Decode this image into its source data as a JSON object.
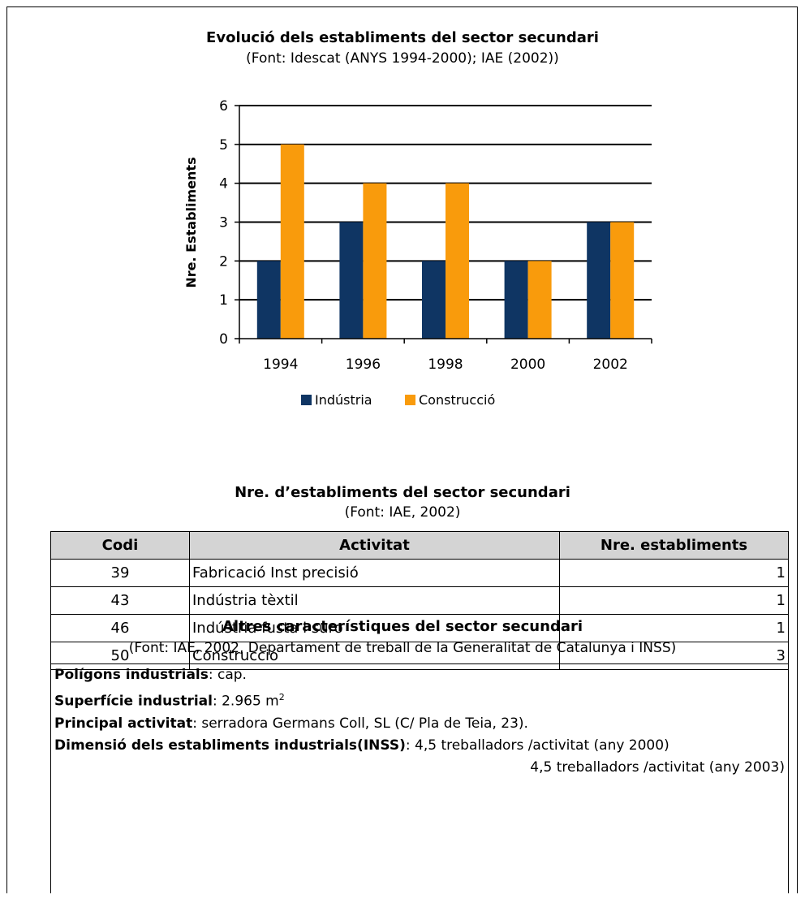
{
  "chart_title": "Evolució dels establiments del sector secundari",
  "chart_source": "(Font: Idescat (ANYS 1994-2000); IAE (2002))",
  "chart_data": {
    "type": "bar",
    "title": "Evolució dels establiments del sector secundari",
    "subtitle": "(Font: Idescat (ANYS 1994-2000); IAE (2002))",
    "categories": [
      "1994",
      "1996",
      "1998",
      "2000",
      "2002"
    ],
    "series": [
      {
        "name": "Indústria",
        "values": [
          2,
          3,
          2,
          2,
          3
        ],
        "color": "#0f3563"
      },
      {
        "name": "Construcció",
        "values": [
          5,
          4,
          4,
          2,
          3
        ],
        "color": "#f99b0c"
      }
    ],
    "xlabel": "",
    "ylabel": "Nre. Establiments",
    "ylim": [
      0,
      6
    ],
    "yticks": [
      "0",
      "1",
      "2",
      "3",
      "4",
      "5",
      "6"
    ],
    "grid": true,
    "legend": "bottom"
  },
  "table": {
    "title": "Nre. d’establiments del sector secundari",
    "source": "(Font: IAE, 2002)",
    "headers": [
      "Codi",
      "Activitat",
      "Nre. establiments"
    ],
    "rows": [
      [
        "39",
        "Fabricació Inst precisió",
        "1"
      ],
      [
        "43",
        "Indústria tèxtil",
        "1"
      ],
      [
        "46",
        "Indústria fusta i suro",
        "1"
      ],
      [
        "50",
        "Construcció",
        "3"
      ]
    ]
  },
  "other": {
    "title": "Altres característiques del sector secundari",
    "source": "(Font: IAE, 2002, Departament de treball de la Generalitat de Catalunya i INSS)",
    "poligons_label": "Polígons industrials",
    "poligons_value": ": cap.",
    "superficie_label": "Superfície industrial",
    "superficie_value": ": 2.965 m",
    "superficie_sup": "2",
    "activitat_label": "Principal activitat",
    "activitat_value": ": serradora Germans Coll, SL (C/ Pla de Teia, 23).",
    "dimensio_label": "Dimensió dels establiments industrials(INSS)",
    "dimensio_value": ": 4,5 treballadors /activitat (any 2000)",
    "dimensio_value2": "4,5 treballadors /activitat (any 2003)"
  }
}
